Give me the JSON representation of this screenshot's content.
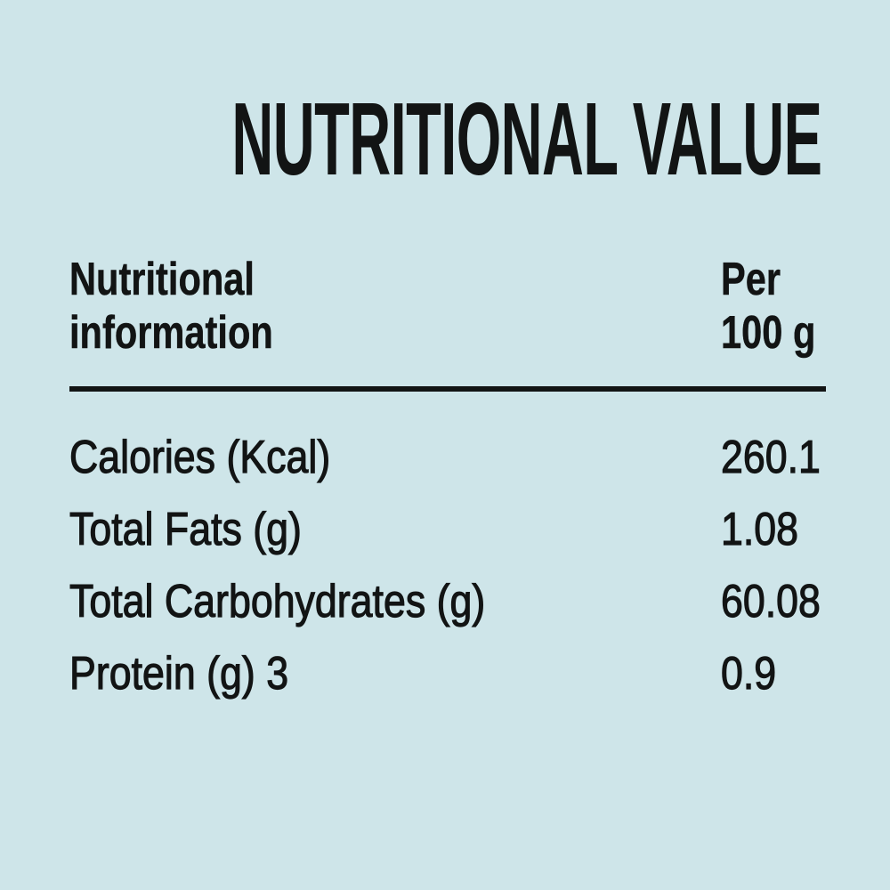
{
  "page": {
    "title": "NUTRITIONAL VALUE",
    "background_color": "#cee5e9",
    "text_color": "#121414"
  },
  "table": {
    "header": {
      "label_line1": "Nutritional",
      "label_line2": "information",
      "unit_line1": "Per",
      "unit_line2": "100 g"
    },
    "rows": [
      {
        "label": "Calories (Kcal)",
        "value": "260.1"
      },
      {
        "label": "Total Fats (g)",
        "value": "1.08"
      },
      {
        "label": "Total Carbohydrates (g)",
        "value": "60.08"
      },
      {
        "label": "Protein (g) 3",
        "value": "0.9"
      }
    ]
  },
  "chart_data": {
    "type": "table",
    "title": "NUTRITIONAL VALUE",
    "columns": [
      "Nutritional information",
      "Per 100 g"
    ],
    "categories": [
      "Calories (Kcal)",
      "Total Fats (g)",
      "Total Carbohydrates (g)",
      "Protein (g) 3"
    ],
    "values": [
      260.1,
      1.08,
      60.08,
      0.9
    ]
  }
}
